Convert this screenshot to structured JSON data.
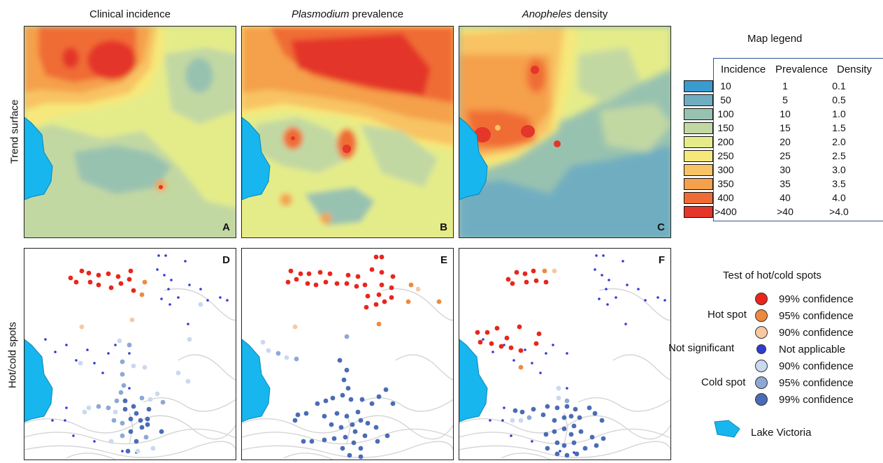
{
  "columns": {
    "a": {
      "text": "Clinical incidence"
    },
    "b": {
      "italic": "Plasmodium",
      "rest": " prevalence"
    },
    "c": {
      "italic": "Anopheles",
      "rest": " density"
    }
  },
  "rows": {
    "top": "Trend surface",
    "bottom": "Hot/cold spots"
  },
  "panels": [
    "A",
    "B",
    "C",
    "D",
    "E",
    "F"
  ],
  "map_legend": {
    "title": "Map legend",
    "headers": [
      "Incidence",
      "Prevalence",
      "Density"
    ],
    "rows": [
      {
        "color": "#3a9bd0",
        "incidence": "10",
        "prevalence": "1",
        "density": "0.1"
      },
      {
        "color": "#6fadc1",
        "incidence": "50",
        "prevalence": "5",
        "density": "0.5"
      },
      {
        "color": "#98c2b0",
        "incidence": "100",
        "prevalence": "10",
        "density": "1.0"
      },
      {
        "color": "#c2d8a3",
        "incidence": "150",
        "prevalence": "15",
        "density": "1.5"
      },
      {
        "color": "#e4ec8a",
        "incidence": "200",
        "prevalence": "20",
        "density": "2.0"
      },
      {
        "color": "#f6e87a",
        "incidence": "250",
        "prevalence": "25",
        "density": "2.5"
      },
      {
        "color": "#f8c364",
        "incidence": "300",
        "prevalence": "30",
        "density": "3.0"
      },
      {
        "color": "#f5a04c",
        "incidence": "350",
        "prevalence": "35",
        "density": "3.5"
      },
      {
        "color": "#f06c35",
        "incidence": "400",
        "prevalence": "40",
        "density": "4.0"
      },
      {
        "color": "#e4362a",
        "incidence": ">400",
        "prevalence": ">40",
        "density": ">4.0"
      }
    ]
  },
  "hotcold_legend": {
    "title": "Test of hot/cold spots",
    "groups": [
      "Hot spot",
      "Not significant",
      "Cold spot"
    ],
    "items": [
      {
        "label": "99% confidence",
        "color": "#e8261c"
      },
      {
        "label": "95% confidence",
        "color": "#ee8a3e"
      },
      {
        "label": "90% confidence",
        "color": "#f7c8a4"
      },
      {
        "label": "Not applicable",
        "color": "#2f3bd4"
      },
      {
        "label": "90% confidence",
        "color": "#c9d9ef"
      },
      {
        "label": "95% confidence",
        "color": "#8ea8d6"
      },
      {
        "label": "99% confidence",
        "color": "#4a6cb4"
      }
    ],
    "lake": "Lake Victoria",
    "lake_color": "#17b6ef"
  }
}
